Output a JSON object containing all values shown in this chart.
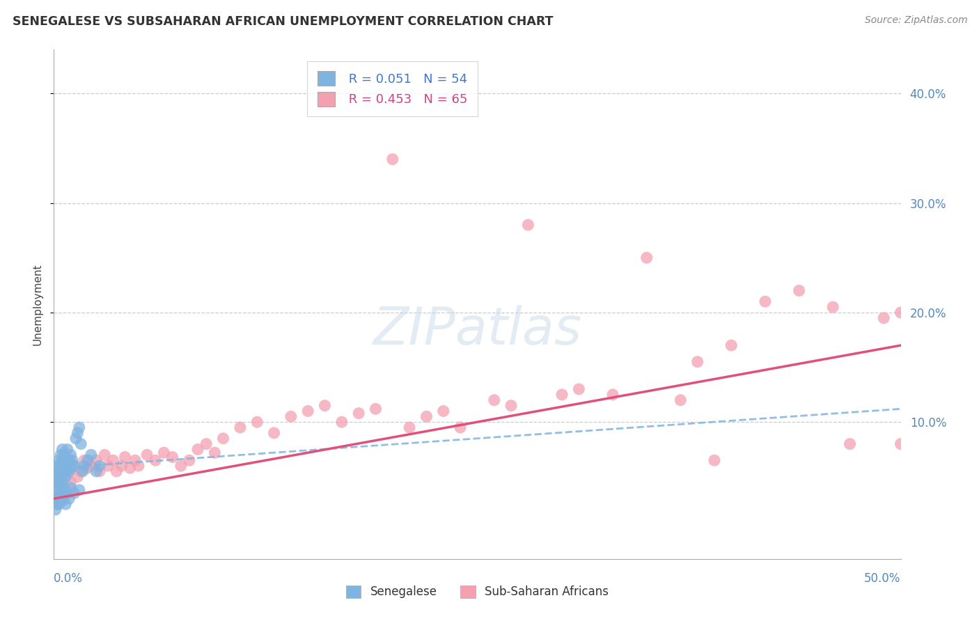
{
  "title": "SENEGALESE VS SUBSAHARAN AFRICAN UNEMPLOYMENT CORRELATION CHART",
  "source": "Source: ZipAtlas.com",
  "ylabel": "Unemployment",
  "xlim": [
    0.0,
    0.5
  ],
  "ylim": [
    -0.025,
    0.44
  ],
  "legend1_r": "0.051",
  "legend1_n": "54",
  "legend2_r": "0.453",
  "legend2_n": "65",
  "blue_color": "#7fb3e0",
  "pink_color": "#f4a0b0",
  "trend_blue": "#7fb3e0",
  "trend_pink": "#e0507a",
  "background_color": "#ffffff",
  "ytick_vals": [
    0.1,
    0.2,
    0.3,
    0.4
  ],
  "xtick_vals": [
    0.0,
    0.1,
    0.2,
    0.3,
    0.4,
    0.5
  ],
  "senegalese_x": [
    0.001,
    0.001,
    0.002,
    0.002,
    0.002,
    0.003,
    0.003,
    0.003,
    0.004,
    0.004,
    0.004,
    0.004,
    0.005,
    0.005,
    0.005,
    0.005,
    0.006,
    0.006,
    0.006,
    0.007,
    0.007,
    0.007,
    0.008,
    0.008,
    0.009,
    0.009,
    0.01,
    0.01,
    0.011,
    0.012,
    0.013,
    0.014,
    0.015,
    0.016,
    0.017,
    0.018,
    0.02,
    0.022,
    0.025,
    0.027,
    0.001,
    0.002,
    0.002,
    0.003,
    0.003,
    0.004,
    0.005,
    0.006,
    0.007,
    0.008,
    0.009,
    0.01,
    0.012,
    0.015
  ],
  "senegalese_y": [
    0.05,
    0.055,
    0.045,
    0.06,
    0.04,
    0.055,
    0.065,
    0.035,
    0.06,
    0.07,
    0.042,
    0.05,
    0.065,
    0.075,
    0.045,
    0.055,
    0.06,
    0.04,
    0.07,
    0.065,
    0.05,
    0.055,
    0.06,
    0.075,
    0.055,
    0.065,
    0.07,
    0.058,
    0.065,
    0.06,
    0.085,
    0.09,
    0.095,
    0.08,
    0.055,
    0.06,
    0.065,
    0.07,
    0.055,
    0.06,
    0.02,
    0.025,
    0.03,
    0.025,
    0.032,
    0.03,
    0.028,
    0.032,
    0.025,
    0.035,
    0.03,
    0.04,
    0.035,
    0.038
  ],
  "subsaharan_x": [
    0.002,
    0.003,
    0.005,
    0.007,
    0.008,
    0.01,
    0.012,
    0.014,
    0.016,
    0.018,
    0.02,
    0.022,
    0.025,
    0.027,
    0.03,
    0.032,
    0.035,
    0.037,
    0.04,
    0.042,
    0.045,
    0.048,
    0.05,
    0.055,
    0.06,
    0.065,
    0.07,
    0.075,
    0.08,
    0.085,
    0.09,
    0.095,
    0.1,
    0.11,
    0.12,
    0.13,
    0.14,
    0.15,
    0.16,
    0.17,
    0.18,
    0.19,
    0.2,
    0.21,
    0.22,
    0.23,
    0.24,
    0.26,
    0.27,
    0.28,
    0.3,
    0.31,
    0.33,
    0.35,
    0.37,
    0.38,
    0.39,
    0.4,
    0.42,
    0.44,
    0.46,
    0.47,
    0.49,
    0.5,
    0.5
  ],
  "subsaharan_y": [
    0.04,
    0.045,
    0.035,
    0.05,
    0.055,
    0.045,
    0.06,
    0.05,
    0.055,
    0.065,
    0.058,
    0.06,
    0.065,
    0.055,
    0.07,
    0.06,
    0.065,
    0.055,
    0.06,
    0.068,
    0.058,
    0.065,
    0.06,
    0.07,
    0.065,
    0.072,
    0.068,
    0.06,
    0.065,
    0.075,
    0.08,
    0.072,
    0.085,
    0.095,
    0.1,
    0.09,
    0.105,
    0.11,
    0.115,
    0.1,
    0.108,
    0.112,
    0.34,
    0.095,
    0.105,
    0.11,
    0.095,
    0.12,
    0.115,
    0.28,
    0.125,
    0.13,
    0.125,
    0.25,
    0.12,
    0.155,
    0.065,
    0.17,
    0.21,
    0.22,
    0.205,
    0.08,
    0.195,
    0.2,
    0.08
  ]
}
